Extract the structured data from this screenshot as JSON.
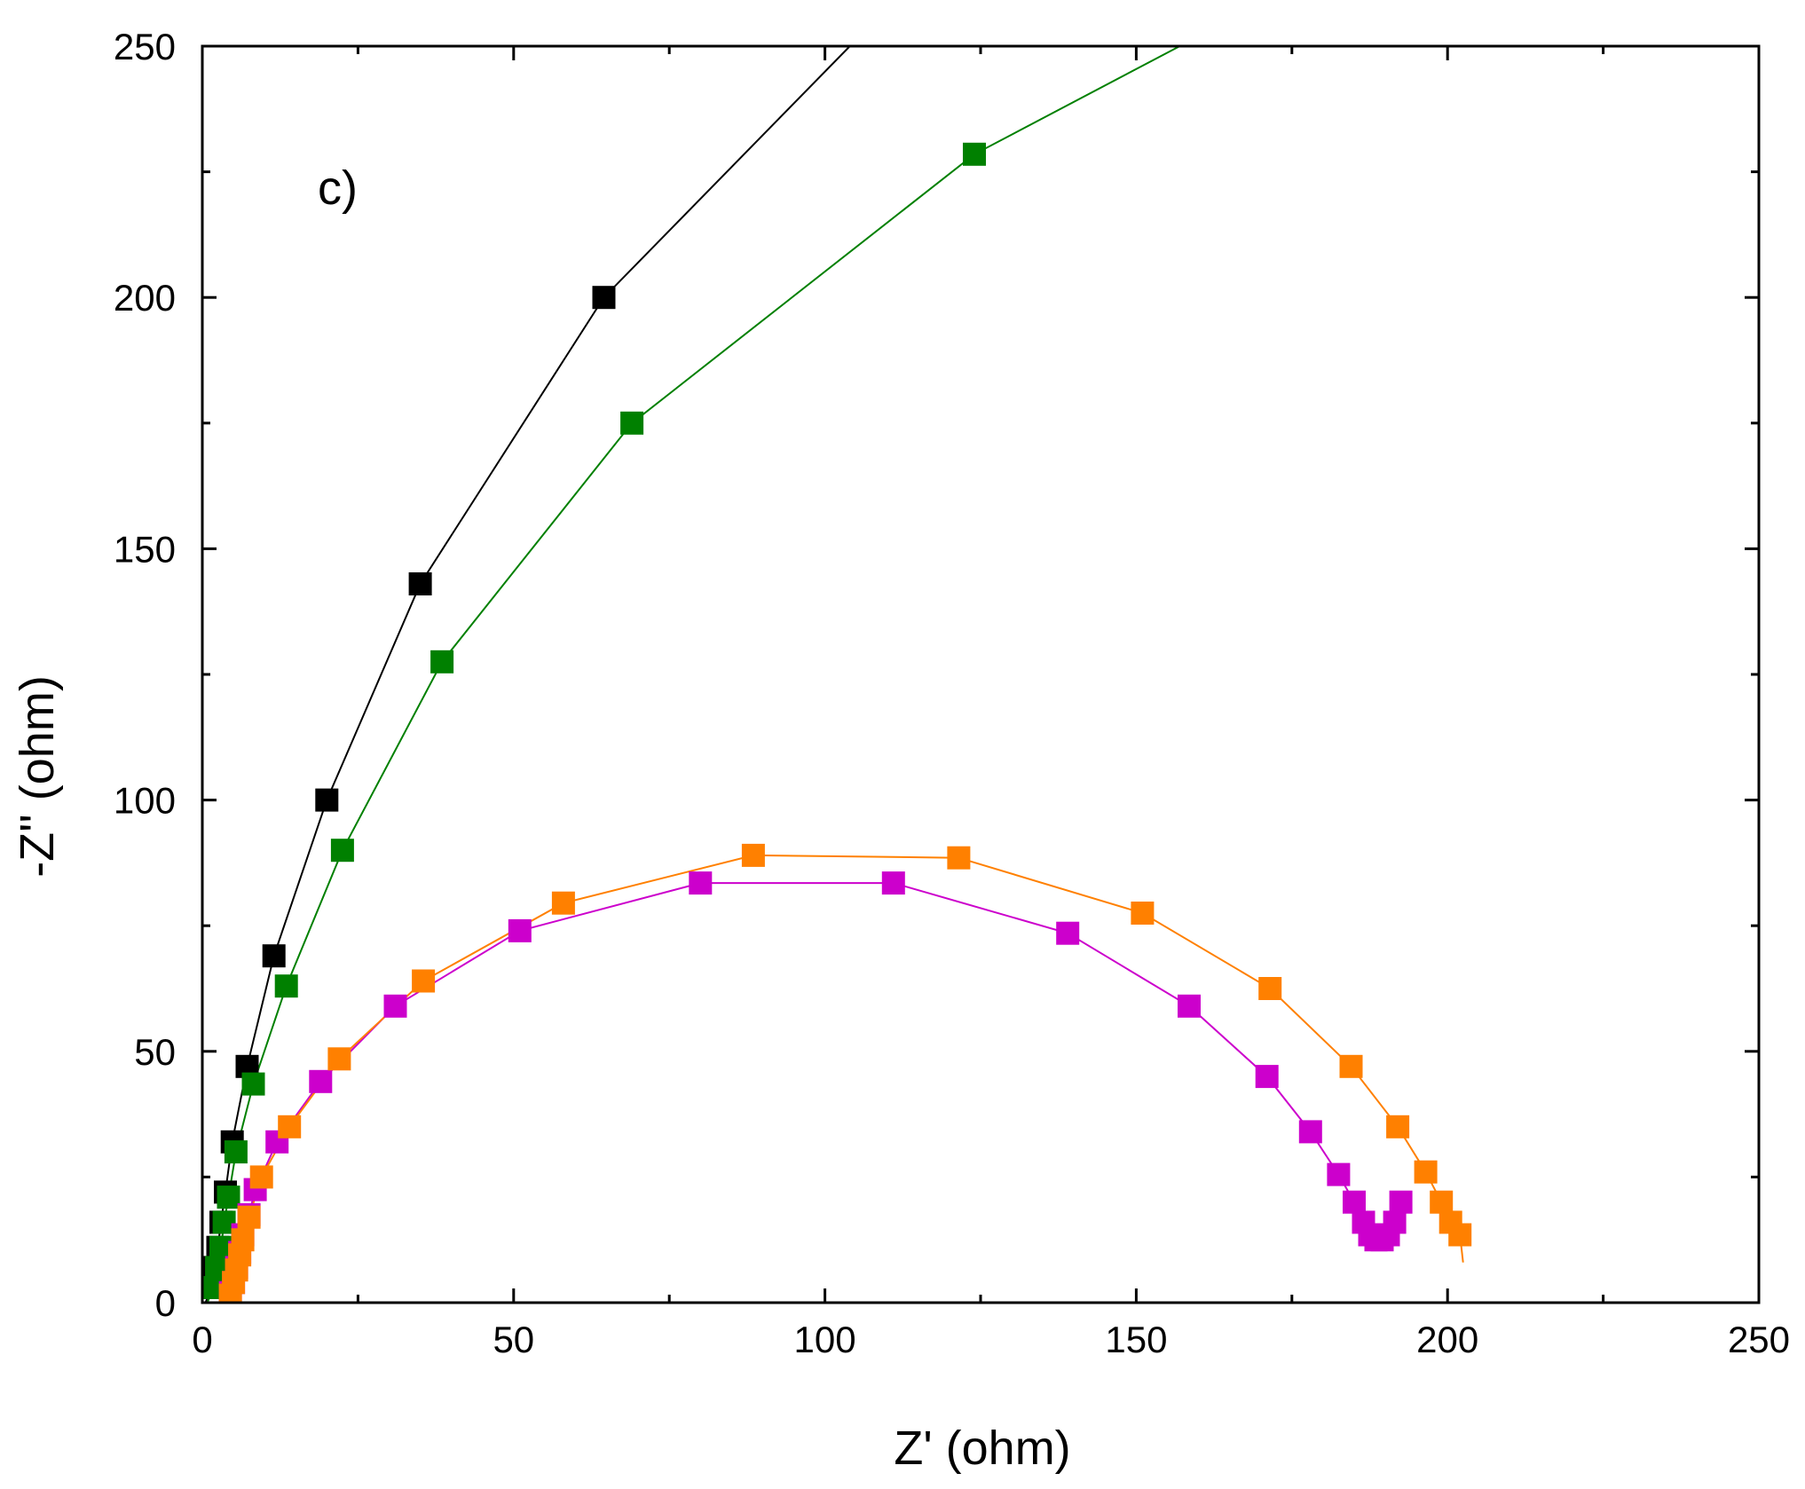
{
  "chart_data": {
    "type": "scatter",
    "title": "",
    "panel_label": "c)",
    "xlabel": "Z' (ohm)",
    "ylabel": "-Z'' (ohm)",
    "xlim": [
      0,
      250
    ],
    "ylim": [
      0,
      250
    ],
    "x_ticks": [
      0,
      50,
      100,
      150,
      200,
      250
    ],
    "y_ticks": [
      0,
      50,
      100,
      150,
      200,
      250
    ],
    "x_tick_labels": [
      "0",
      "50",
      "100",
      "150",
      "200",
      "250"
    ],
    "y_tick_labels": [
      "0",
      "50",
      "100",
      "150",
      "200",
      "250"
    ],
    "grid": false,
    "legend": "none",
    "series": [
      {
        "name": "black",
        "color": "#000000",
        "markers": [
          [
            1.5,
            3
          ],
          [
            2,
            7
          ],
          [
            2.5,
            11
          ],
          [
            3,
            16
          ],
          [
            3.7,
            22
          ],
          [
            4.8,
            32
          ],
          [
            7.2,
            47
          ],
          [
            11.5,
            69
          ],
          [
            20,
            100
          ],
          [
            35,
            143
          ],
          [
            64.5,
            200
          ]
        ],
        "line": [
          [
            0.5,
            0
          ],
          [
            1.5,
            3
          ],
          [
            2,
            7
          ],
          [
            2.5,
            11
          ],
          [
            3,
            16
          ],
          [
            3.7,
            22
          ],
          [
            4.8,
            32
          ],
          [
            7.2,
            47
          ],
          [
            11.5,
            69
          ],
          [
            20,
            100
          ],
          [
            35,
            143
          ],
          [
            64.5,
            200
          ],
          [
            104,
            250
          ]
        ]
      },
      {
        "name": "green",
        "color": "#008000",
        "markers": [
          [
            1.8,
            3
          ],
          [
            2.3,
            7
          ],
          [
            3,
            11
          ],
          [
            3.5,
            16
          ],
          [
            4.2,
            21
          ],
          [
            5.4,
            30
          ],
          [
            8.2,
            43.5
          ],
          [
            13.5,
            63
          ],
          [
            22.5,
            90
          ],
          [
            38.5,
            127.5
          ],
          [
            69,
            175
          ],
          [
            124,
            228.5
          ]
        ],
        "line": [
          [
            0.8,
            0
          ],
          [
            1.8,
            3
          ],
          [
            2.3,
            7
          ],
          [
            3,
            11
          ],
          [
            3.5,
            16
          ],
          [
            4.2,
            21
          ],
          [
            5.4,
            30
          ],
          [
            8.2,
            43.5
          ],
          [
            13.5,
            63
          ],
          [
            22.5,
            90
          ],
          [
            38.5,
            127.5
          ],
          [
            69,
            175
          ],
          [
            124,
            228.5
          ],
          [
            157,
            250
          ]
        ]
      },
      {
        "name": "magenta",
        "color": "#cc00cc",
        "markers": [
          [
            4.5,
            2
          ],
          [
            5,
            4
          ],
          [
            5.5,
            7
          ],
          [
            6,
            10
          ],
          [
            6.5,
            13.5
          ],
          [
            7.5,
            17.5
          ],
          [
            8.5,
            22.5
          ],
          [
            12,
            32
          ],
          [
            19,
            44
          ],
          [
            31,
            59
          ],
          [
            51,
            74
          ],
          [
            80,
            83.5
          ],
          [
            111,
            83.5
          ],
          [
            139,
            73.5
          ],
          [
            158.5,
            59
          ],
          [
            171,
            45
          ],
          [
            178,
            34
          ],
          [
            182.5,
            25.5
          ],
          [
            185,
            20
          ],
          [
            186.5,
            16
          ],
          [
            187.5,
            13.5
          ],
          [
            188.5,
            12.5
          ],
          [
            189.5,
            12.5
          ],
          [
            190.5,
            13.5
          ],
          [
            191.5,
            16
          ],
          [
            192.5,
            20
          ]
        ],
        "line": [
          [
            3.8,
            0
          ],
          [
            4.5,
            2
          ],
          [
            5,
            4
          ],
          [
            5.5,
            7
          ],
          [
            6,
            10
          ],
          [
            6.5,
            13.5
          ],
          [
            7.5,
            17.5
          ],
          [
            8.5,
            22.5
          ],
          [
            12,
            32
          ],
          [
            19,
            44
          ],
          [
            31,
            59
          ],
          [
            51,
            74
          ],
          [
            80,
            83.5
          ],
          [
            111,
            83.5
          ],
          [
            139,
            73.5
          ],
          [
            158.5,
            59
          ],
          [
            171,
            45
          ],
          [
            178,
            34
          ],
          [
            182.5,
            25.5
          ],
          [
            185,
            20
          ],
          [
            186.5,
            16
          ],
          [
            187.5,
            13.5
          ],
          [
            188.5,
            12.5
          ],
          [
            189.5,
            12.5
          ],
          [
            190.5,
            13.5
          ],
          [
            191.5,
            16
          ],
          [
            192.5,
            20
          ]
        ]
      },
      {
        "name": "orange",
        "color": "#ff8000",
        "markers": [
          [
            4.5,
            1.5
          ],
          [
            5,
            4
          ],
          [
            5.5,
            6.5
          ],
          [
            6,
            9.5
          ],
          [
            6.5,
            12.5
          ],
          [
            7.5,
            17
          ],
          [
            9.5,
            25
          ],
          [
            14,
            35
          ],
          [
            22,
            48.5
          ],
          [
            35.5,
            64
          ],
          [
            58,
            79.5
          ],
          [
            88.5,
            89
          ],
          [
            121.5,
            88.5
          ],
          [
            151,
            77.5
          ],
          [
            171.5,
            62.5
          ],
          [
            184.5,
            47
          ],
          [
            192,
            35
          ],
          [
            196.5,
            26
          ],
          [
            199,
            20
          ],
          [
            200.5,
            16
          ],
          [
            202,
            13.5
          ]
        ],
        "line": [
          [
            4,
            0
          ],
          [
            4.5,
            1.5
          ],
          [
            5,
            4
          ],
          [
            5.5,
            6.5
          ],
          [
            6,
            9.5
          ],
          [
            6.5,
            12.5
          ],
          [
            7.5,
            17
          ],
          [
            9.5,
            25
          ],
          [
            14,
            35
          ],
          [
            22,
            48.5
          ],
          [
            35.5,
            64
          ],
          [
            58,
            79.5
          ],
          [
            88.5,
            89
          ],
          [
            121.5,
            88.5
          ],
          [
            151,
            77.5
          ],
          [
            171.5,
            62.5
          ],
          [
            184.5,
            47
          ],
          [
            192,
            35
          ],
          [
            196.5,
            26
          ],
          [
            199,
            20
          ],
          [
            200.5,
            16
          ],
          [
            202,
            13.5
          ],
          [
            202.5,
            8
          ]
        ]
      }
    ]
  }
}
